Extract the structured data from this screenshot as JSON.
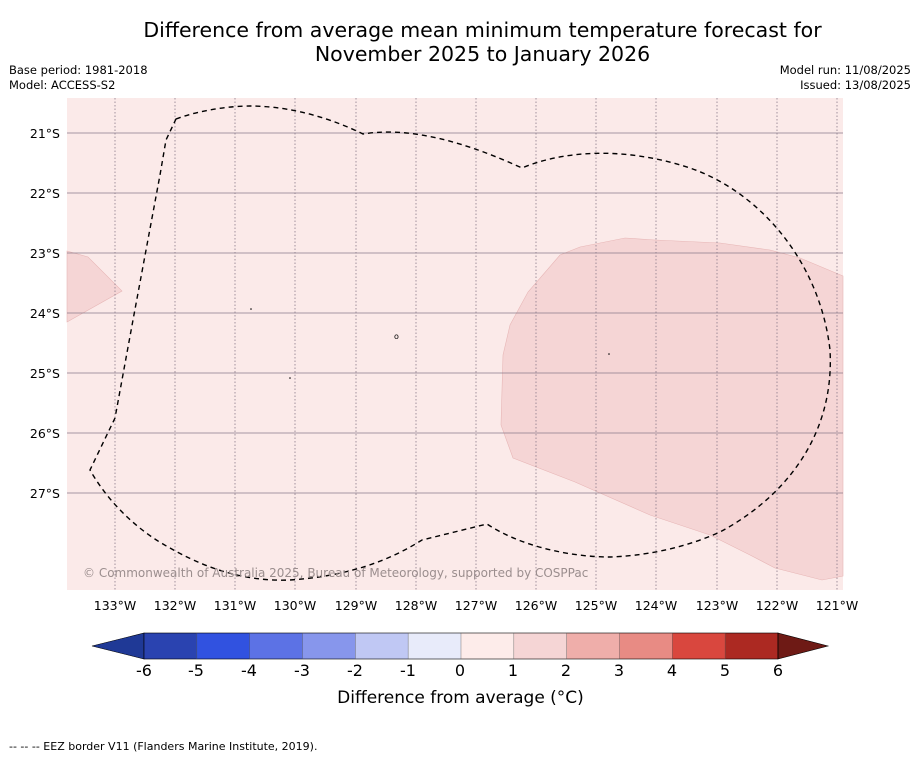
{
  "title_line1": "Difference from average mean minimum temperature forecast for",
  "title_line2": "November 2025 to January 2026",
  "base_period": "Base period: 1981-2018",
  "model": "Model: ACCESS-S2",
  "model_run": "Model run: 11/08/2025",
  "issued": "Issued: 13/08/2025",
  "copyright": "© Commonwealth of Australia 2025, Bureau of Meteorology, supported by COSPPac",
  "map": {
    "background_color": "#fbeae9",
    "anomaly_region_color": "#f5d5d5",
    "eez_line": "dashed",
    "lat_ticks": [
      "21°S",
      "22°S",
      "23°S",
      "24°S",
      "25°S",
      "26°S",
      "27°S"
    ],
    "lon_ticks": [
      "133°W",
      "132°W",
      "131°W",
      "130°W",
      "129°W",
      "128°W",
      "127°W",
      "126°W",
      "125°W",
      "124°W",
      "123°W",
      "122°W",
      "121°W"
    ],
    "island_labels": [
      "o"
    ]
  },
  "colorbar": {
    "ticks": [
      "-6",
      "-5",
      "-4",
      "-3",
      "-2",
      "-1",
      "0",
      "1",
      "2",
      "3",
      "4",
      "5",
      "6"
    ],
    "colors": [
      "#1f3996",
      "#2a43b0",
      "#3152e0",
      "#5c72e5",
      "#8796ec",
      "#c0c8f4",
      "#e8ebfa",
      "#fdecea",
      "#f5d5d5",
      "#efaeaa",
      "#e88b84",
      "#d9473e",
      "#ac2922",
      "#6e1a15"
    ],
    "label": "Difference from average (°C)"
  },
  "footer": "--  --  -- EEZ border V11 (Flanders Marine Institute, 2019)."
}
